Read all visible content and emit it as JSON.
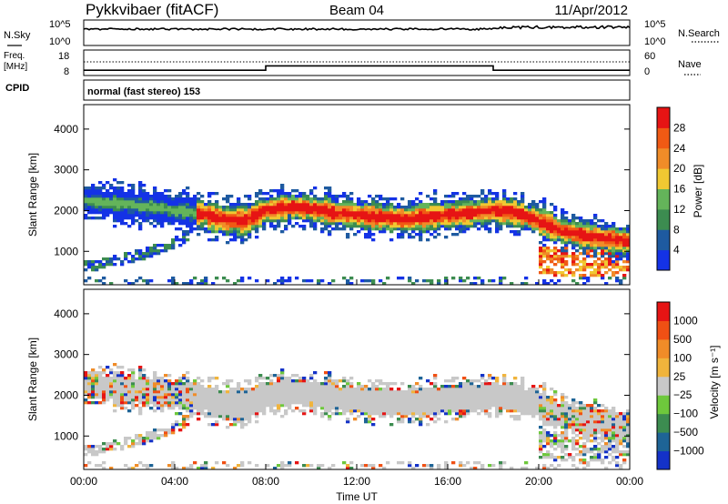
{
  "header": {
    "radar": "Pykkvibaer (fitACF)",
    "beam": "Beam 04",
    "date": "11/Apr/2012"
  },
  "nsky_panel": {
    "left_label": "N.Sky",
    "tick_top": "10^5",
    "tick_bottom": "10^0",
    "right_label": "N.Search"
  },
  "freq_panel": {
    "left_label_1": "Freq.",
    "left_label_2": "[MHz]",
    "left_tick_top": "18",
    "left_tick_bottom": "8",
    "right_tick_top": "60",
    "right_tick_bottom": "0",
    "right_label": "Nave"
  },
  "cpid": {
    "label": "CPID",
    "value": "normal (fast stereo) 153"
  },
  "x_axis": {
    "label": "Time UT",
    "ticks": [
      "00:00",
      "04:00",
      "08:00",
      "12:00",
      "16:00",
      "20:00",
      "00:00"
    ]
  },
  "power_panel": {
    "ylabel": "Slant Range [km]",
    "yticks": [
      "1000",
      "2000",
      "3000",
      "4000"
    ],
    "colorbar_label": "Power [dB]",
    "colorbar_ticks": [
      "4",
      "8",
      "12",
      "16",
      "20",
      "24",
      "28"
    ],
    "colors": [
      "#1432e6",
      "#1e5aa0",
      "#3c8c50",
      "#64b45a",
      "#f0c832",
      "#f08c28",
      "#f05a14",
      "#e61414"
    ]
  },
  "velocity_panel": {
    "ylabel": "Slant Range [km]",
    "yticks": [
      "1000",
      "2000",
      "3000",
      "4000"
    ],
    "colorbar_label": "Velocity [m s⁻¹]",
    "colorbar_ticks": [
      "1000",
      "500",
      "100",
      "25",
      "−25",
      "−100",
      "−500",
      "−1000"
    ],
    "colors": [
      "#1432c8",
      "#1e6496",
      "#3c8c50",
      "#6ec83c",
      "#c8c8c8",
      "#f0b43c",
      "#f08c28",
      "#f05014",
      "#e61414"
    ],
    "ground_scatter_color": "#c8c8c8"
  },
  "chart_data": {
    "type": "heatmap",
    "x": {
      "label": "Time UT",
      "range_hours": [
        0,
        24
      ]
    },
    "y": {
      "label": "Slant Range [km]",
      "range_km": [
        180,
        4600
      ]
    },
    "frequency_mhz": [
      {
        "start_hour": 0,
        "end_hour": 8,
        "value": 10
      },
      {
        "start_hour": 8,
        "end_hour": 18,
        "value": 12
      },
      {
        "start_hour": 18,
        "end_hour": 24,
        "value": 10
      }
    ],
    "power_band_center_km": [
      [
        0,
        2250
      ],
      [
        1,
        2200
      ],
      [
        2,
        2150
      ],
      [
        3,
        2100
      ],
      [
        4,
        2000
      ],
      [
        5,
        1950
      ],
      [
        6,
        1800
      ],
      [
        7,
        1750
      ],
      [
        8,
        2000
      ],
      [
        9,
        2100
      ],
      [
        10,
        2050
      ],
      [
        11,
        1950
      ],
      [
        12,
        1900
      ],
      [
        13,
        1850
      ],
      [
        14,
        1800
      ],
      [
        15,
        1850
      ],
      [
        16,
        1900
      ],
      [
        17,
        1950
      ],
      [
        18,
        2000
      ],
      [
        19,
        1950
      ],
      [
        20,
        1750
      ],
      [
        21,
        1500
      ],
      [
        22,
        1400
      ],
      [
        23,
        1300
      ],
      [
        24,
        1250
      ]
    ],
    "power_band_halfwidth_km": 300,
    "power_lower_arc_km": [
      [
        0,
        650
      ],
      [
        1,
        700
      ],
      [
        2,
        850
      ],
      [
        3,
        1000
      ],
      [
        4,
        1200
      ],
      [
        4.7,
        1400
      ]
    ]
  }
}
